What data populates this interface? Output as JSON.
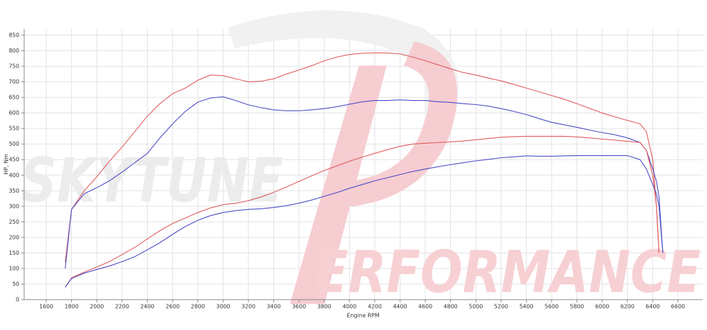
{
  "chart_data": {
    "type": "line",
    "xlabel": "Engine RPM",
    "ylabel": "HP, Nm",
    "watermark": {
      "top": "SKYTUNE",
      "bottom": "ERFORMANCE"
    },
    "x": [
      1750,
      1800,
      1900,
      2000,
      2100,
      2200,
      2300,
      2400,
      2500,
      2600,
      2700,
      2800,
      2900,
      3000,
      3100,
      3200,
      3300,
      3400,
      3500,
      3600,
      3700,
      3800,
      3900,
      4000,
      4100,
      4200,
      4300,
      4400,
      4500,
      4600,
      4700,
      4800,
      4900,
      5000,
      5100,
      5200,
      5300,
      5400,
      5500,
      5600,
      5700,
      5800,
      5900,
      6000,
      6100,
      6200,
      6300,
      6350,
      6400,
      6430,
      6450,
      6480
    ],
    "series": [
      {
        "color": "#e05a5a",
        "values": [
          120,
          290,
          350,
          395,
          445,
          490,
          540,
          590,
          630,
          662,
          680,
          705,
          722,
          720,
          710,
          700,
          702,
          710,
          725,
          738,
          752,
          768,
          780,
          788,
          792,
          793,
          793,
          790,
          780,
          768,
          755,
          742,
          730,
          722,
          712,
          703,
          692,
          680,
          668,
          656,
          644,
          630,
          615,
          600,
          588,
          576,
          565,
          540,
          450,
          300,
          150,
          null
        ]
      },
      {
        "color": "#4a4ac8",
        "values": [
          100,
          290,
          340,
          360,
          382,
          410,
          440,
          470,
          520,
          565,
          605,
          635,
          648,
          652,
          640,
          626,
          617,
          610,
          607,
          607,
          610,
          614,
          620,
          628,
          636,
          640,
          640,
          642,
          640,
          640,
          636,
          634,
          630,
          627,
          622,
          614,
          605,
          595,
          582,
          570,
          562,
          554,
          545,
          537,
          530,
          520,
          505,
          480,
          420,
          380,
          330,
          150
        ]
      },
      {
        "color": "#e05a5a",
        "values": [
          40,
          70,
          88,
          105,
          122,
          145,
          168,
          195,
          222,
          245,
          262,
          280,
          295,
          305,
          310,
          318,
          330,
          345,
          362,
          380,
          398,
          415,
          430,
          445,
          458,
          470,
          482,
          493,
          500,
          503,
          505,
          507,
          510,
          514,
          518,
          522,
          524,
          525,
          525,
          525,
          525,
          523,
          520,
          516,
          513,
          509,
          505,
          480,
          400,
          300,
          150,
          null
        ]
      },
      {
        "color": "#4a4ac8",
        "values": [
          40,
          68,
          85,
          97,
          108,
          122,
          138,
          160,
          183,
          210,
          235,
          255,
          270,
          280,
          286,
          290,
          292,
          296,
          302,
          310,
          320,
          332,
          344,
          358,
          370,
          382,
          392,
          402,
          412,
          420,
          427,
          434,
          440,
          446,
          451,
          456,
          459,
          462,
          461,
          461,
          462,
          463,
          463,
          463,
          463,
          463,
          450,
          420,
          370,
          340,
          300,
          150
        ]
      }
    ],
    "xlim": [
      1425,
      6797
    ],
    "ylim": [
      0,
      870
    ],
    "xticks": [
      1600,
      1800,
      2000,
      2200,
      2400,
      2600,
      2800,
      3000,
      3200,
      3400,
      3600,
      3800,
      4000,
      4200,
      4400,
      4600,
      4800,
      5000,
      5200,
      5400,
      5600,
      5800,
      6000,
      6200,
      6400,
      6600
    ],
    "yticks": [
      0,
      50,
      100,
      150,
      200,
      250,
      300,
      350,
      400,
      450,
      500,
      550,
      600,
      650,
      700,
      750,
      800,
      850
    ],
    "grid": true
  }
}
